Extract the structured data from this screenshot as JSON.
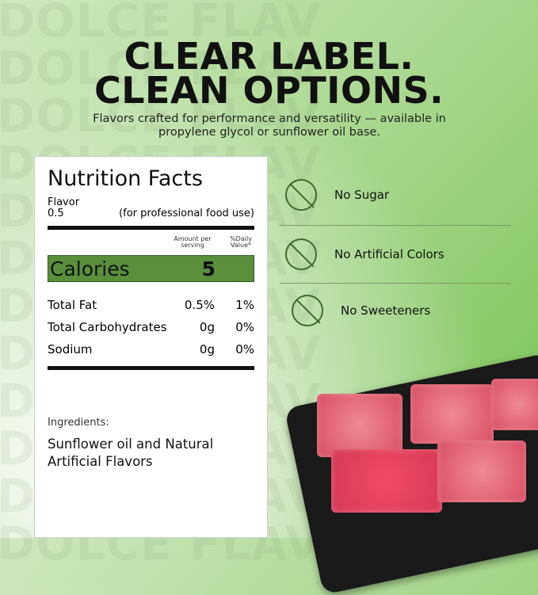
{
  "watermark": "DOLCE FLAV\nDOLCE FLAV\nDOLCE FLAV\nDOLCE FLAV\nDOLCE FLAV\nDOLCE FLAV\nDOLCE FLAV\nDOLCE FLAV\nDOLCE FLAV\nDOLCE FLAV\nDOLCE FLAV\nDOLCE FLAV",
  "headline": {
    "line1": "CLEAR LABEL.",
    "line2": "CLEAN OPTIONS.",
    "subtitle": "Flavors crafted for performance and versatility — available in propylene glycol or sunflower oil base."
  },
  "nutrition": {
    "title": "Nutrition Facts",
    "product": "Flavor",
    "serving": "0.5",
    "note": "(for professional food use)",
    "col_amount": "Amount per serving",
    "col_dv": "%Daily Value*",
    "calories_label": "Calories",
    "calories_value": "5",
    "rows": [
      {
        "name": "Total Fat",
        "amount": "0.5%",
        "dv": "1%"
      },
      {
        "name": "Total Carbohydrates",
        "amount": "0g",
        "dv": "0%"
      },
      {
        "name": "Sodium",
        "amount": "0g",
        "dv": "0%"
      }
    ],
    "ingredients_label": "Ingredients:",
    "ingredients": "Sunflower oil and Natural Artificial Flavors"
  },
  "features": [
    {
      "label": "No Sugar",
      "icon": "no-sugar-cubes-icon"
    },
    {
      "label": "No Artificial Colors",
      "icon": "no-dropper-icon"
    },
    {
      "label": "No Sweeteners",
      "icon": "no-sweetener-packet-icon"
    }
  ],
  "colors": {
    "accent": "#5a8f3c",
    "icon": "#3f6b2e"
  }
}
